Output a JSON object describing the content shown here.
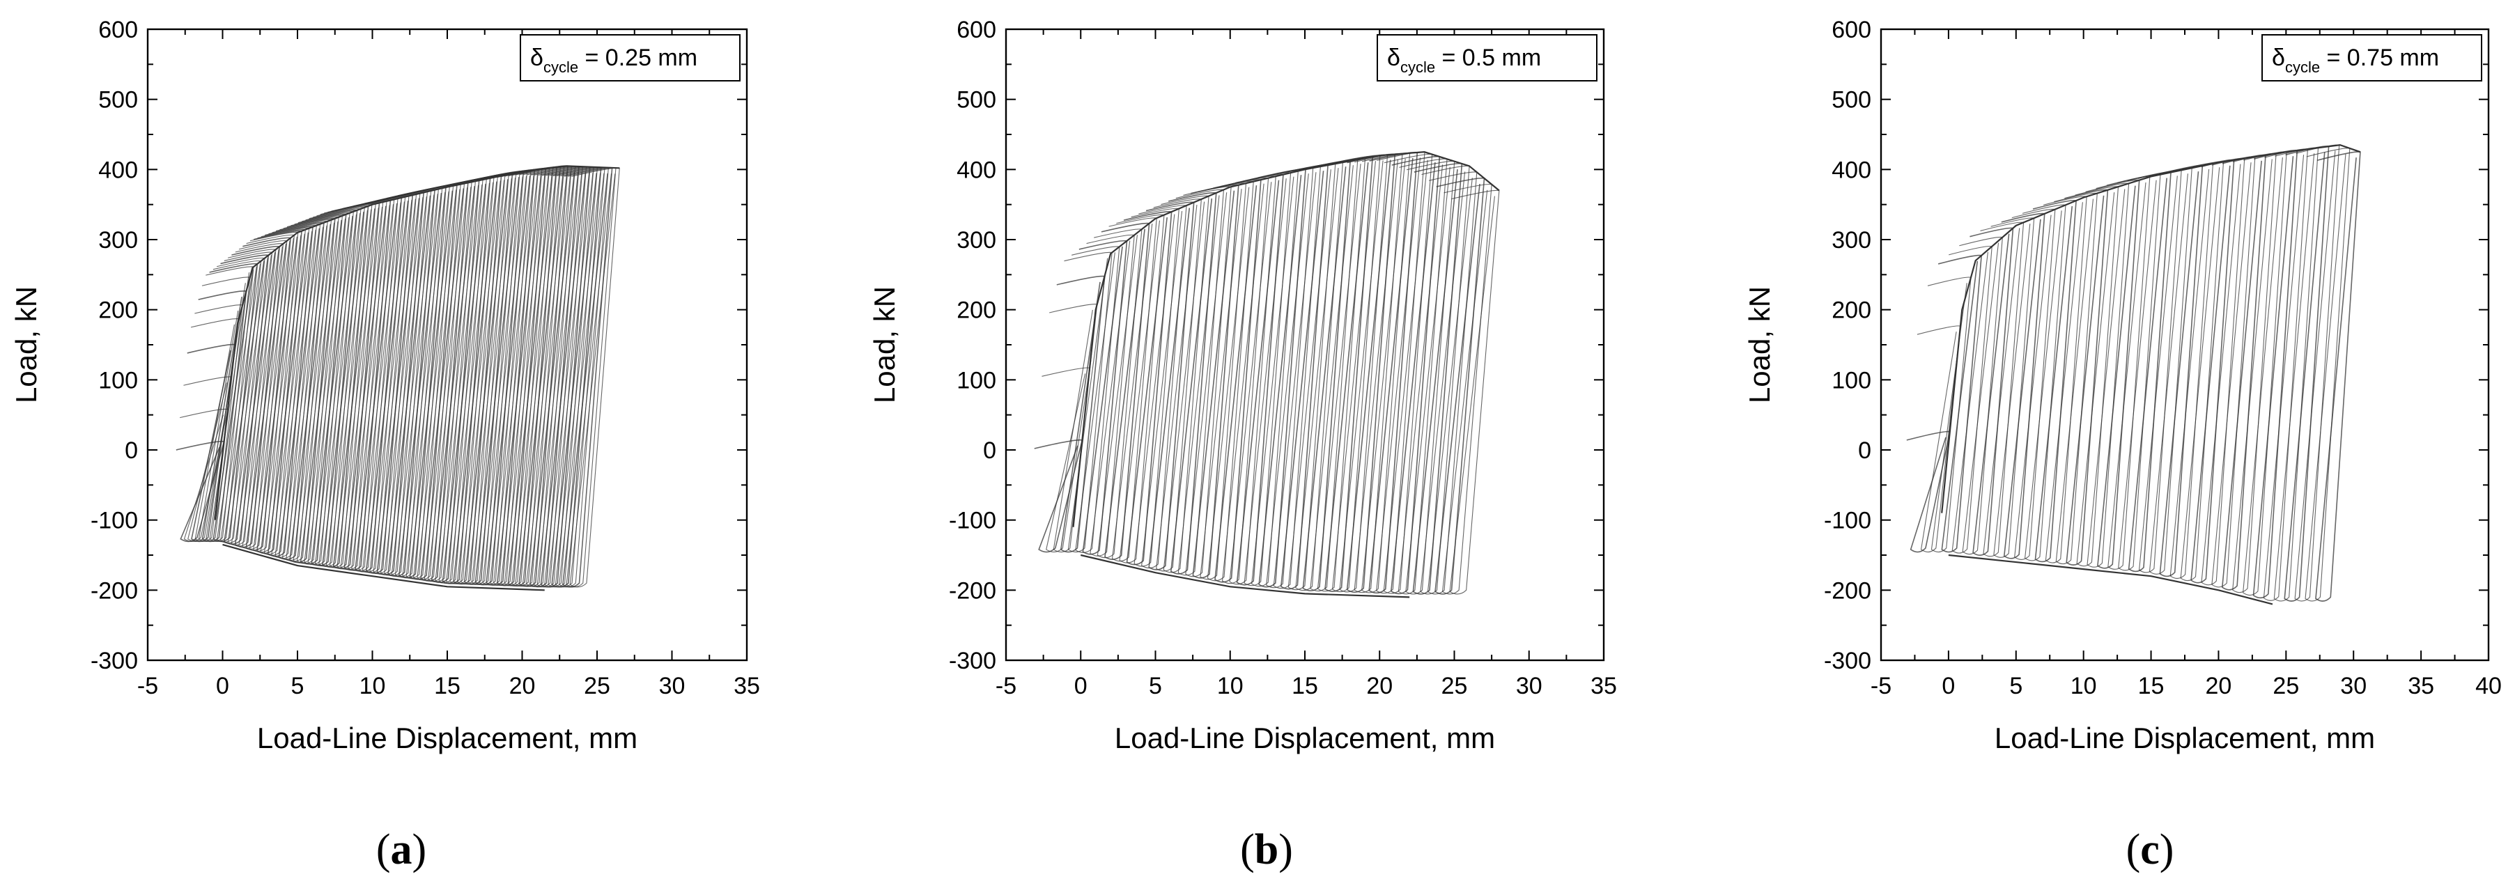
{
  "figure": {
    "panels": [
      {
        "label": "a",
        "legend_symbol": "δ",
        "legend_sub": "cycle",
        "legend_value": "= 0.25 mm"
      },
      {
        "label": "b",
        "legend_symbol": "δ",
        "legend_sub": "cycle",
        "legend_value": "= 0.5 mm"
      },
      {
        "label": "c",
        "legend_symbol": "δ",
        "legend_sub": "cycle",
        "legend_value": "= 0.75 mm"
      }
    ]
  },
  "colors": {
    "curve": "#333333",
    "axis": "#000000",
    "background": "#ffffff"
  },
  "chart_data": [
    {
      "type": "line",
      "xlabel": "Load-Line Displacement, mm",
      "ylabel": "Load, kN",
      "xlim": [
        -5,
        35
      ],
      "ylim": [
        -300,
        600
      ],
      "xticks": [
        -5,
        0,
        5,
        10,
        15,
        20,
        25,
        30,
        35
      ],
      "yticks": [
        -300,
        -200,
        -100,
        0,
        100,
        200,
        300,
        400,
        500,
        600
      ],
      "legend": "δcycle = 0.25 mm",
      "legend_position": "top-right",
      "grid": false,
      "envelope": {
        "x_start": -0.5,
        "x_end": 26.5,
        "peak_load_kN": 405,
        "min_load_kN": -200,
        "initial_min_load_kN": -140,
        "upper_envelope": [
          [
            -0.5,
            -100
          ],
          [
            1,
            180
          ],
          [
            2,
            260
          ],
          [
            5,
            310
          ],
          [
            10,
            350
          ],
          [
            15,
            375
          ],
          [
            20,
            397
          ],
          [
            23,
            405
          ],
          [
            26.5,
            402
          ]
        ],
        "lower_envelope": [
          [
            0,
            -135
          ],
          [
            5,
            -165
          ],
          [
            10,
            -180
          ],
          [
            15,
            -195
          ],
          [
            21.5,
            -200
          ]
        ],
        "cycles_drawn": 108
      }
    },
    {
      "type": "line",
      "xlabel": "Load-Line Displacement, mm",
      "ylabel": "Load, kN",
      "xlim": [
        -5,
        35
      ],
      "ylim": [
        -300,
        600
      ],
      "xticks": [
        -5,
        0,
        5,
        10,
        15,
        20,
        25,
        30,
        35
      ],
      "yticks": [
        -300,
        -200,
        -100,
        0,
        100,
        200,
        300,
        400,
        500,
        600
      ],
      "legend": "δcycle = 0.5 mm",
      "legend_position": "top-right",
      "grid": false,
      "envelope": {
        "x_start": -0.5,
        "x_end": 28,
        "peak_load_kN": 425,
        "min_load_kN": -210,
        "initial_min_load_kN": -150,
        "upper_envelope": [
          [
            -0.5,
            -110
          ],
          [
            1,
            200
          ],
          [
            2,
            280
          ],
          [
            5,
            330
          ],
          [
            10,
            375
          ],
          [
            15,
            400
          ],
          [
            20,
            420
          ],
          [
            23,
            425
          ],
          [
            26,
            405
          ],
          [
            28,
            370
          ]
        ],
        "lower_envelope": [
          [
            0,
            -150
          ],
          [
            5,
            -175
          ],
          [
            10,
            -195
          ],
          [
            15,
            -205
          ],
          [
            22,
            -210
          ]
        ],
        "cycles_drawn": 57
      }
    },
    {
      "type": "line",
      "xlabel": "Load-Line Displacement, mm",
      "ylabel": "Load, kN",
      "xlim": [
        -5,
        40
      ],
      "ylim": [
        -300,
        600
      ],
      "xticks": [
        -5,
        0,
        5,
        10,
        15,
        20,
        25,
        30,
        35,
        40
      ],
      "yticks": [
        -300,
        -200,
        -100,
        0,
        100,
        200,
        300,
        400,
        500,
        600
      ],
      "legend": "δcycle = 0.75 mm",
      "legend_position": "top-right",
      "grid": false,
      "envelope": {
        "x_start": -0.5,
        "x_end": 30.5,
        "peak_load_kN": 435,
        "min_load_kN": -220,
        "initial_min_load_kN": -150,
        "upper_envelope": [
          [
            -0.5,
            -90
          ],
          [
            1,
            200
          ],
          [
            2,
            270
          ],
          [
            5,
            320
          ],
          [
            10,
            360
          ],
          [
            15,
            390
          ],
          [
            20,
            410
          ],
          [
            25,
            425
          ],
          [
            29,
            435
          ],
          [
            30.5,
            425
          ]
        ],
        "lower_envelope": [
          [
            0,
            -150
          ],
          [
            5,
            -160
          ],
          [
            10,
            -170
          ],
          [
            15,
            -180
          ],
          [
            20,
            -200
          ],
          [
            24,
            -220
          ]
        ],
        "cycles_drawn": 40
      }
    }
  ]
}
